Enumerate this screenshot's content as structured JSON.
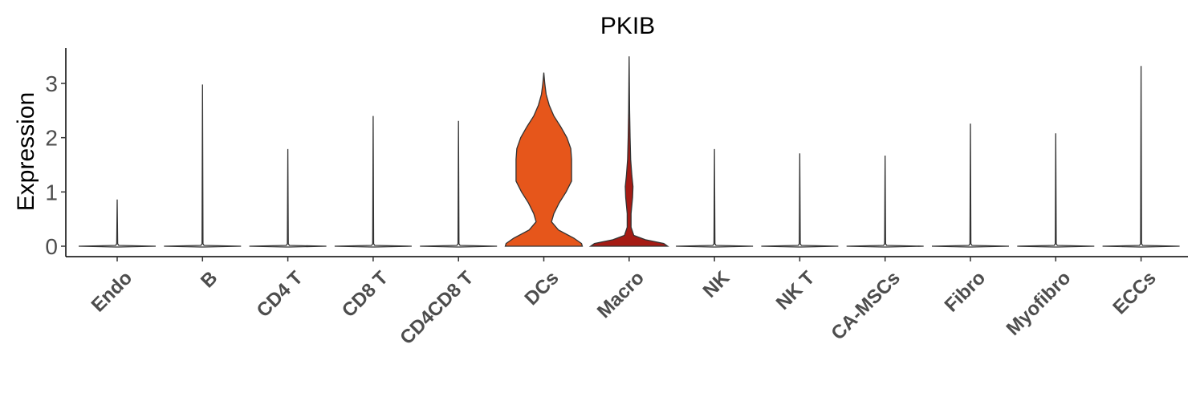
{
  "chart_data": {
    "type": "violin",
    "title": "PKIB",
    "xlabel": "",
    "ylabel": "Expression",
    "ylim": [
      -0.2,
      3.65
    ],
    "yticks": [
      0,
      1,
      2,
      3
    ],
    "grid": false,
    "categories": [
      "Endo",
      "B",
      "CD4 T",
      "CD8 T",
      "CD4CD8 T",
      "DCs",
      "Macro",
      "NK",
      "NK T",
      "CA-MSCs",
      "Fibro",
      "Myofibro",
      "ECCs"
    ],
    "max_values": [
      0.86,
      2.98,
      1.79,
      2.4,
      2.31,
      3.2,
      3.5,
      1.79,
      1.71,
      1.67,
      2.26,
      2.08,
      3.32
    ],
    "colors": [
      "#ffffff",
      "#ffffff",
      "#ffffff",
      "#ffffff",
      "#ffffff",
      "#e6561b",
      "#a51b14",
      "#ffffff",
      "#ffffff",
      "#ffffff",
      "#ffffff",
      "#ffffff",
      "#ffffff"
    ],
    "density": {
      "DCs": {
        "y": [
          0,
          0.05,
          0.15,
          0.3,
          0.45,
          0.6,
          0.8,
          1.0,
          1.2,
          1.4,
          1.6,
          1.8,
          2.0,
          2.2,
          2.4,
          2.6,
          2.8,
          3.0,
          3.2
        ],
        "w": [
          1.0,
          0.98,
          0.78,
          0.38,
          0.2,
          0.26,
          0.4,
          0.58,
          0.72,
          0.72,
          0.72,
          0.7,
          0.6,
          0.44,
          0.26,
          0.14,
          0.06,
          0.025,
          0
        ]
      },
      "Macro": {
        "y": [
          0,
          0.05,
          0.12,
          0.2,
          0.35,
          0.6,
          0.9,
          1.1,
          1.3,
          1.6,
          2.0,
          2.5,
          3.0,
          3.5
        ],
        "w": [
          1.0,
          0.9,
          0.42,
          0.12,
          0.05,
          0.05,
          0.09,
          0.1,
          0.07,
          0.04,
          0.025,
          0.012,
          0.006,
          0
        ]
      }
    }
  }
}
